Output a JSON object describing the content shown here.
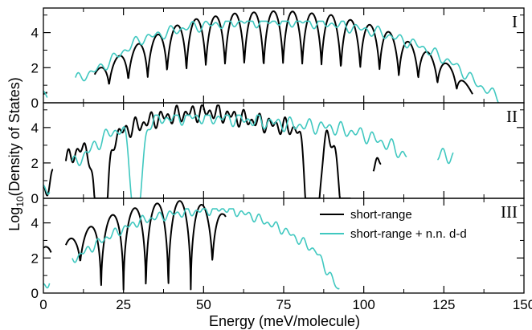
{
  "chart_data": {
    "type": "line",
    "xlabel": "Energy (meV/molecule)",
    "ylabel": "Log",
    "ylabel_sub": "10",
    "ylabel_rest": "(Density of States)",
    "xlim": [
      0,
      150
    ],
    "xticks": [
      "0",
      "25",
      "50",
      "75",
      "100",
      "125",
      "150"
    ],
    "ylim": [
      0,
      5.4
    ],
    "yticks": [
      "0",
      "2",
      "4"
    ],
    "colors": {
      "short_range": "#000000",
      "nn_dd": "#40c8c0"
    },
    "legend": {
      "placement": "panel III, top-right",
      "entries": [
        "short-range",
        "short-range + n.n. d-d"
      ]
    },
    "panels": [
      {
        "label": "I",
        "series": [
          {
            "name": "short-range",
            "color": "#000000",
            "min_val": 0,
            "max_val": 5.25,
            "anchors": [
              [
                0,
                0.5
              ],
              [
                16,
                1.8
              ],
              [
                30,
                3.4
              ],
              [
                45,
                4.7
              ],
              [
                60,
                5.1
              ],
              [
                75,
                5.25
              ],
              [
                90,
                5.0
              ],
              [
                105,
                4.3
              ],
              [
                118,
                3.1
              ],
              [
                128,
                2.0
              ],
              [
                134,
                0.6
              ]
            ],
            "peaks": [
              0.5,
              17.5,
              23.5,
              29.5,
              35.6,
              41.6,
              47.7,
              53.7,
              59.7,
              65.7,
              71.8,
              77.8,
              83.8,
              89.8,
              95.9,
              101.9,
              107.9,
              114.0,
              120.0,
              126.0,
              132.0
            ],
            "mask": [
              [
                0,
                1.2
              ],
              [
                16,
                134
              ]
            ]
          },
          {
            "name": "short-range + n.n. d-d",
            "color": "#40c8c0",
            "min_val": 0,
            "max_val": 4.65,
            "anchors": [
              [
                0,
                0.4
              ],
              [
                18,
                2.0
              ],
              [
                30,
                3.6
              ],
              [
                45,
                4.3
              ],
              [
                60,
                4.6
              ],
              [
                75,
                4.65
              ],
              [
                90,
                4.5
              ],
              [
                105,
                4.0
              ],
              [
                118,
                3.2
              ],
              [
                128,
                2.2
              ],
              [
                136,
                1.0
              ],
              [
                142,
                0.3
              ]
            ],
            "period": 3.6,
            "ripple": 0.35,
            "mask": [
              [
                0,
                1.2
              ],
              [
                10,
                142
              ]
            ]
          }
        ]
      },
      {
        "label": "II",
        "series": [
          {
            "name": "short-range",
            "color": "#000000",
            "min_val": 0,
            "max_val": 5.25,
            "anchors": [
              [
                0,
                0.3
              ],
              [
                4,
                1.6
              ],
              [
                10,
                2.6
              ],
              [
                18,
                3.2
              ],
              [
                25,
                3.8
              ],
              [
                35,
                4.5
              ],
              [
                45,
                4.8
              ],
              [
                52,
                4.9
              ],
              [
                60,
                4.6
              ],
              [
                70,
                4.2
              ],
              [
                80,
                3.9
              ],
              [
                85,
                3.7
              ],
              [
                90,
                3.4
              ],
              [
                95,
                2.0
              ]
            ],
            "period": 2.6,
            "ripple": 0.55,
            "dips": [
              [
                18,
                8
              ],
              [
                84,
                9
              ],
              [
                95,
                9
              ]
            ],
            "mask": [
              [
                0,
                3
              ],
              [
                7,
                96
              ],
              [
                103,
                105.5
              ]
            ]
          },
          {
            "name": "short-range + n.n. d-d",
            "color": "#40c8c0",
            "min_val": 0,
            "max_val": 4.7,
            "anchors": [
              [
                0,
                0.4
              ],
              [
                5,
                1.3
              ],
              [
                10,
                2.0
              ],
              [
                15,
                2.8
              ],
              [
                20,
                3.6
              ],
              [
                30,
                4.4
              ],
              [
                45,
                4.6
              ],
              [
                60,
                4.5
              ],
              [
                75,
                4.2
              ],
              [
                90,
                4.0
              ],
              [
                100,
                3.6
              ],
              [
                108,
                3.0
              ],
              [
                113,
                2.4
              ]
            ],
            "period": 3.2,
            "ripple": 0.45,
            "dips": [
              [
                29,
                6
              ]
            ],
            "mask": [
              [
                0,
                2
              ],
              [
                9,
                113.5
              ],
              [
                123,
                128
              ]
            ]
          }
        ]
      },
      {
        "label": "III",
        "series": [
          {
            "name": "short-range",
            "color": "#000000",
            "min_val": 0,
            "max_val": 5.3,
            "anchors": [
              [
                0,
                2.6
              ],
              [
                10,
                3.2
              ],
              [
                18,
                4.2
              ],
              [
                25,
                4.7
              ],
              [
                35,
                5.1
              ],
              [
                45,
                5.3
              ],
              [
                50,
                5.0
              ],
              [
                56,
                4.5
              ]
            ],
            "peaks": [
              0.5,
              8.5,
              14.5,
              21.5,
              28.5,
              35.5,
              42.5,
              49.5,
              56.0
            ],
            "mask": [
              [
                0,
                2.5
              ],
              [
                7,
                57
              ]
            ]
          },
          {
            "name": "short-range + n.n. d-d",
            "color": "#40c8c0",
            "min_val": 0,
            "max_val": 4.8,
            "anchors": [
              [
                0,
                0.3
              ],
              [
                4,
                1.2
              ],
              [
                10,
                2.0
              ],
              [
                20,
                3.2
              ],
              [
                30,
                4.1
              ],
              [
                40,
                4.5
              ],
              [
                50,
                4.7
              ],
              [
                57,
                4.8
              ],
              [
                65,
                4.4
              ],
              [
                75,
                3.6
              ],
              [
                85,
                2.4
              ],
              [
                92,
                0.2
              ]
            ],
            "period": 2.8,
            "ripple": 0.3,
            "mask": [
              [
                0,
                2
              ],
              [
                9,
                92.5
              ]
            ]
          }
        ]
      }
    ]
  }
}
